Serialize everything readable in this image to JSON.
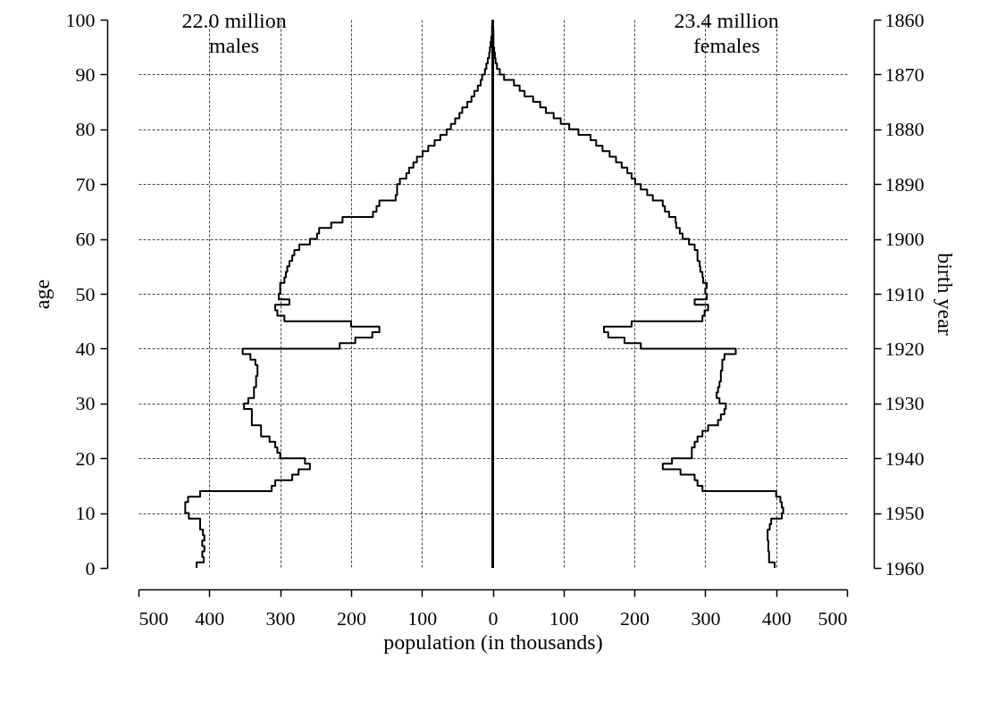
{
  "chart_data": {
    "type": "step",
    "orientation": "horizontal",
    "xlabel": "population (in thousands)",
    "ylabel": "age",
    "y2label": "birth year",
    "annotations": [
      "22.0 million\nmales",
      "23.4 million\nfemales"
    ],
    "x": [
      0,
      1,
      2,
      3,
      4,
      5,
      6,
      7,
      8,
      9,
      10,
      11,
      12,
      13,
      14,
      15,
      16,
      17,
      18,
      19,
      20,
      21,
      22,
      23,
      24,
      25,
      26,
      27,
      28,
      29,
      30,
      31,
      32,
      33,
      34,
      35,
      36,
      37,
      38,
      39,
      40,
      41,
      42,
      43,
      44,
      45,
      46,
      47,
      48,
      49,
      50,
      51,
      52,
      53,
      54,
      55,
      56,
      57,
      58,
      59,
      60,
      61,
      62,
      63,
      64,
      65,
      66,
      67,
      68,
      69,
      70,
      71,
      72,
      73,
      74,
      75,
      76,
      77,
      78,
      79,
      80,
      81,
      82,
      83,
      84,
      85,
      86,
      87,
      88,
      89,
      90,
      91,
      92,
      93,
      94,
      95,
      96,
      97,
      98,
      99
    ],
    "series": [
      {
        "color": "#000000",
        "values": [
          -418,
          -408,
          -410,
          -407,
          -410,
          -407,
          -409,
          -413,
          -413,
          -429,
          -434,
          -434,
          -430,
          -413,
          -312,
          -307,
          -283,
          -274,
          -258,
          -265,
          -300,
          -304,
          -307,
          -315,
          -327,
          -327,
          -340,
          -340,
          -340,
          -351,
          -345,
          -337,
          -337,
          -334,
          -334,
          -332,
          -332,
          -335,
          -342,
          -353,
          -216,
          -194,
          -170,
          -160,
          -200,
          -294,
          -304,
          -307,
          -287,
          -302,
          -300,
          -300,
          -294,
          -292,
          -290,
          -287,
          -283,
          -280,
          -273,
          -258,
          -248,
          -245,
          -228,
          -212,
          -169,
          -164,
          -160,
          -137,
          -135,
          -135,
          -131,
          -122,
          -118,
          -112,
          -107,
          -99,
          -91,
          -82,
          -74,
          -65,
          -59,
          -53,
          -47,
          -43,
          -36,
          -30,
          -26,
          -21,
          -17,
          -15,
          -11,
          -9,
          -7,
          -5,
          -4,
          -3,
          -2,
          -1,
          -1,
          0
        ]
      },
      {
        "color": "#000000",
        "values": [
          398,
          390,
          390,
          389,
          389,
          388,
          388,
          391,
          393,
          408,
          410,
          408,
          406,
          400,
          296,
          289,
          285,
          265,
          240,
          253,
          281,
          281,
          285,
          289,
          296,
          304,
          318,
          322,
          327,
          329,
          320,
          316,
          318,
          320,
          322,
          322,
          324,
          324,
          327,
          343,
          209,
          186,
          163,
          157,
          196,
          296,
          299,
          304,
          285,
          302,
          300,
          302,
          297,
          296,
          293,
          292,
          289,
          289,
          285,
          277,
          268,
          264,
          259,
          258,
          249,
          243,
          240,
          226,
          218,
          209,
          201,
          196,
          190,
          182,
          174,
          165,
          155,
          146,
          138,
          121,
          108,
          96,
          86,
          75,
          67,
          57,
          45,
          38,
          30,
          16,
          10,
          6,
          4,
          3,
          2,
          1,
          1,
          1,
          0,
          0
        ]
      }
    ],
    "xlim": [
      -500,
      500
    ],
    "xticks": [
      {
        "value": -500,
        "label": "500"
      },
      {
        "value": -400,
        "label": "400"
      },
      {
        "value": -300,
        "label": "300"
      },
      {
        "value": -200,
        "label": "200"
      },
      {
        "value": -100,
        "label": "100"
      },
      0,
      100,
      200,
      300,
      400,
      500
    ],
    "ylim": [
      0,
      100
    ],
    "yticks": [
      0,
      10,
      20,
      30,
      40,
      50,
      60,
      70,
      80,
      90,
      100
    ],
    "y2lim": [
      1960,
      1860
    ],
    "y2ticks": [
      1860,
      1870,
      1880,
      1890,
      1900,
      1910,
      1920,
      1930,
      1940,
      1950,
      1960
    ],
    "ref_lines": [
      {
        "axis": "x",
        "value": 0
      }
    ],
    "grid": true
  }
}
